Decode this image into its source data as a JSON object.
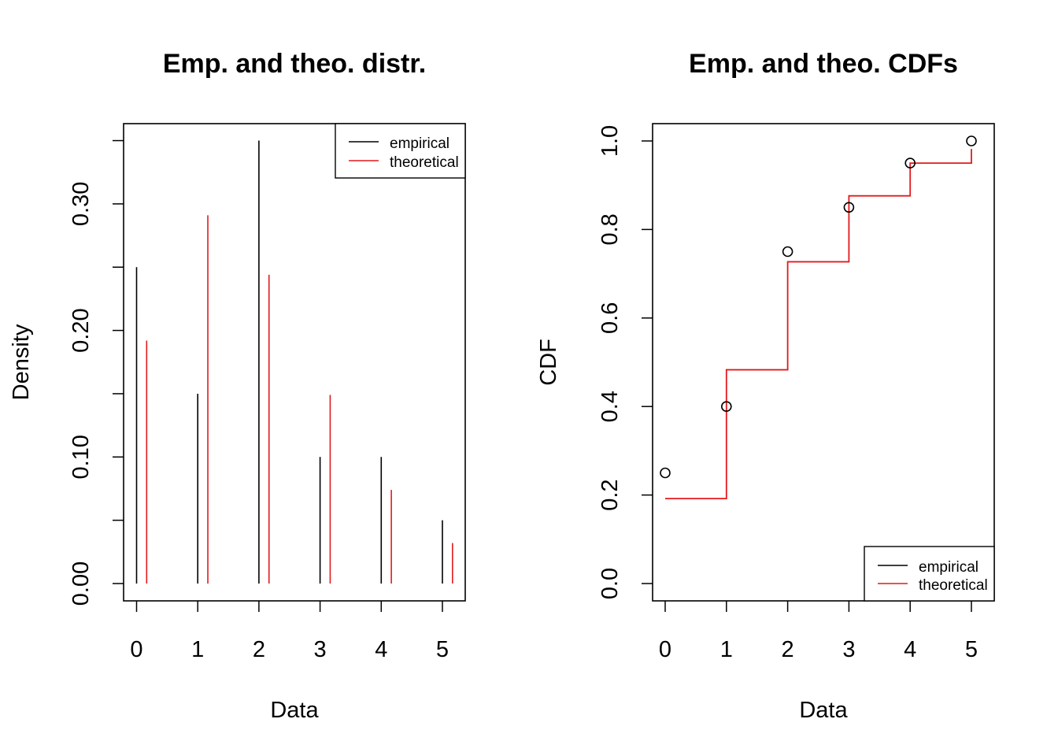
{
  "chart_data": [
    {
      "type": "bar",
      "title": "Emp. and theo. distr.",
      "xlabel": "Data",
      "ylabel": "Density",
      "x_ticks": [
        "0",
        "1",
        "2",
        "3",
        "4",
        "5"
      ],
      "y_ticks": [
        "0.00",
        "0.10",
        "0.20",
        "0.30"
      ],
      "xlim": [
        -0.2,
        5.2
      ],
      "ylim": [
        0,
        0.35
      ],
      "x": [
        0,
        1,
        2,
        3,
        4,
        5
      ],
      "series": [
        {
          "name": "empirical",
          "color": "#000000",
          "values": [
            0.25,
            0.15,
            0.35,
            0.1,
            0.1,
            0.05
          ]
        },
        {
          "name": "theoretical",
          "color": "#e31a1c",
          "values": [
            0.192,
            0.291,
            0.244,
            0.149,
            0.074,
            0.032
          ]
        }
      ],
      "legend": {
        "position": "top-right",
        "entries": [
          "empirical",
          "theoretical"
        ]
      },
      "grid": false
    },
    {
      "type": "line",
      "title": "Emp. and theo. CDFs",
      "xlabel": "Data",
      "ylabel": "CDF",
      "x_ticks": [
        "0",
        "1",
        "2",
        "3",
        "4",
        "5"
      ],
      "y_ticks": [
        "0.0",
        "0.2",
        "0.4",
        "0.6",
        "0.8",
        "1.0"
      ],
      "xlim": [
        -0.2,
        5.4
      ],
      "ylim": [
        0,
        1.0
      ],
      "x": [
        0,
        1,
        2,
        3,
        4,
        5
      ],
      "series": [
        {
          "name": "empirical",
          "color": "#000000",
          "marker": "open-circle",
          "values": [
            0.25,
            0.4,
            0.75,
            0.85,
            0.95,
            1.0
          ]
        },
        {
          "name": "theoretical",
          "color": "#e31a1c",
          "style": "step",
          "values": [
            0.192,
            0.483,
            0.727,
            0.876,
            0.95,
            0.982
          ]
        }
      ],
      "legend": {
        "position": "bottom-right",
        "entries": [
          "empirical",
          "theoretical"
        ]
      },
      "grid": false
    }
  ]
}
